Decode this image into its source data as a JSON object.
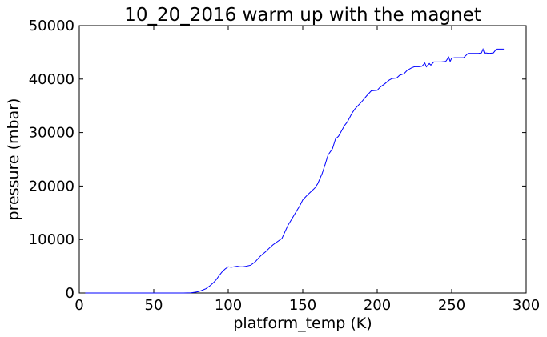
{
  "chart_data": {
    "type": "line",
    "title": "10_20_2016 warm up with the magnet",
    "xlabel": "platform_temp (K)",
    "ylabel": "pressure (mbar)",
    "xlim": [
      0,
      300
    ],
    "ylim": [
      0,
      50000
    ],
    "xticks": [
      0,
      50,
      100,
      150,
      200,
      250,
      300
    ],
    "yticks": [
      0,
      10000,
      20000,
      30000,
      40000,
      50000
    ],
    "xtick_labels": [
      "0",
      "50",
      "100",
      "150",
      "200",
      "250",
      "300"
    ],
    "ytick_labels": [
      "0",
      "10000",
      "20000",
      "30000",
      "40000",
      "50000"
    ],
    "grid": false,
    "line_color": "#0000ff",
    "series": [
      {
        "x": [
          4,
          20,
          40,
          60,
          70,
          75,
          78,
          80,
          82,
          85,
          88,
          90,
          92,
          94,
          96,
          98,
          100,
          102,
          104,
          106,
          108,
          110,
          112,
          115,
          118,
          120,
          122,
          125,
          128,
          130,
          133,
          136,
          138,
          140,
          143,
          146,
          148,
          150,
          153,
          155,
          158,
          160,
          163,
          165,
          167,
          170,
          172,
          174,
          176,
          178,
          180,
          183,
          185,
          187,
          190,
          193,
          196,
          200,
          202,
          205,
          208,
          210,
          213,
          215,
          218,
          220,
          223,
          225,
          228,
          230,
          232,
          233,
          235,
          236,
          238,
          240,
          243,
          246,
          248,
          249,
          250,
          252,
          255,
          258,
          261,
          264,
          266,
          268,
          270,
          271,
          272,
          273,
          275,
          278,
          280,
          282,
          285
        ],
        "y": [
          0,
          0,
          0,
          0,
          0,
          50,
          150,
          250,
          450,
          800,
          1400,
          1900,
          2500,
          3300,
          4000,
          4500,
          4900,
          4800,
          4900,
          5000,
          4900,
          4900,
          5000,
          5200,
          5800,
          6400,
          7000,
          7700,
          8500,
          9000,
          9600,
          10200,
          11400,
          12600,
          14000,
          15400,
          16300,
          17400,
          18300,
          18800,
          19600,
          20400,
          22300,
          24000,
          25800,
          27000,
          28800,
          29300,
          30300,
          31300,
          32000,
          33600,
          34400,
          35000,
          35900,
          36900,
          37800,
          37900,
          38500,
          39100,
          39800,
          40100,
          40200,
          40700,
          41000,
          41600,
          42100,
          42300,
          42300,
          42400,
          43000,
          42300,
          42900,
          42600,
          43200,
          43200,
          43200,
          43300,
          44100,
          43300,
          43900,
          44000,
          44000,
          44000,
          44800,
          44800,
          44800,
          44800,
          44900,
          45600,
          44800,
          44900,
          44800,
          44900,
          45600,
          45600,
          45600
        ]
      }
    ]
  }
}
